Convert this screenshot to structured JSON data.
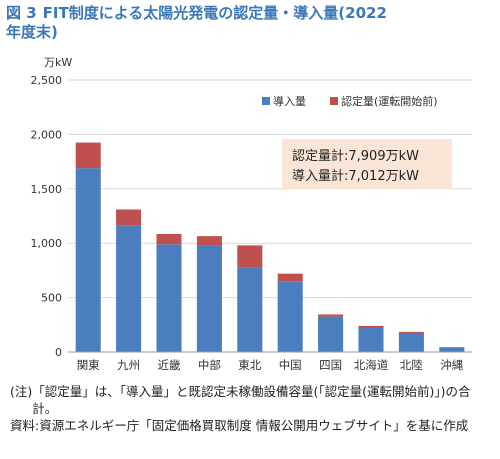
{
  "title": {
    "figure_no": "図 3",
    "text_line1": "FIT制度による太陽光発電の認定量・導入量(2022",
    "text_line2": "年度末)"
  },
  "chart_data": {
    "type": "bar",
    "stacked": true,
    "unit_label": "万kW",
    "categories": [
      "関東",
      "九州",
      "近畿",
      "中部",
      "東北",
      "中国",
      "四国",
      "北海道",
      "北陸",
      "沖縄"
    ],
    "series": [
      {
        "name": "導入量",
        "color": "#4a7ebf",
        "values": [
          1690,
          1160,
          990,
          975,
          780,
          650,
          325,
          225,
          175,
          40
        ]
      },
      {
        "name": "認定量(運転開始前)",
        "color": "#c0504d",
        "values": [
          235,
          150,
          95,
          90,
          200,
          70,
          20,
          15,
          10,
          5
        ]
      }
    ],
    "ylim": [
      0,
      2500
    ],
    "yticks": [
      "0",
      "500",
      "1,000",
      "1,500",
      "2,000",
      "2,500"
    ],
    "ytick_values": [
      0,
      500,
      1000,
      1500,
      2000,
      2500
    ],
    "grid": true,
    "legend_position": "top-right",
    "annotation": {
      "line1": "認定量計:7,909万kW",
      "line2": "導入量計:7,012万kW",
      "background": "#fbe5d6"
    }
  },
  "notes": {
    "note_head": "(注)",
    "note_text": "「認定量」は、「導入量」と既認定未稼働設備容量(「認定量(運転開始前)」)の合計。",
    "source_head": "資料:",
    "source_text": "資源エネルギー庁「固定価格買取制度 情報公開用ウェブサイト」を基に作成"
  }
}
